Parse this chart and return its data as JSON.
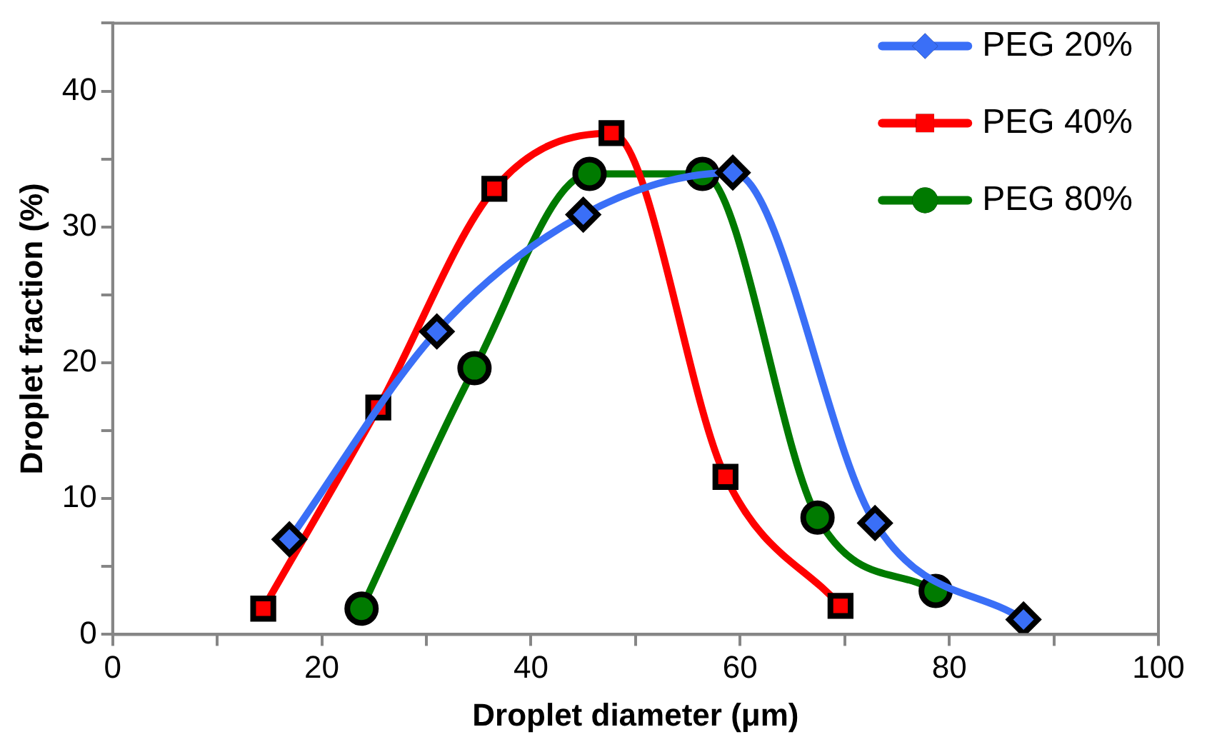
{
  "chart_data": {
    "type": "line",
    "xlabel": "Droplet diameter (μm)",
    "ylabel": "Droplet fraction (%)",
    "xlim": [
      0,
      100
    ],
    "xticks": [
      0,
      {
        "value": 10,
        "label": null
      },
      20,
      {
        "value": 30,
        "label": null
      },
      40,
      {
        "value": 50,
        "label": null
      },
      60,
      {
        "value": 70,
        "label": null
      },
      80,
      {
        "value": 90,
        "label": null
      },
      100
    ],
    "ylim": [
      0,
      45
    ],
    "yticks": [
      0,
      {
        "value": 5,
        "label": null
      },
      10,
      {
        "value": 15,
        "label": null
      },
      20,
      {
        "value": 25,
        "label": null
      },
      30,
      {
        "value": 35,
        "label": null
      },
      40,
      {
        "value": 45,
        "label": null
      }
    ],
    "grid": false,
    "legend": "top right",
    "series": [
      {
        "name": "PEG 20%",
        "color": "#3a6ff7",
        "marker": "diamond",
        "x": [
          16.9,
          31.0,
          45.0,
          59.3,
          72.9,
          87.1
        ],
        "values": [
          7.0,
          22.3,
          30.9,
          34.0,
          8.2,
          1.1
        ]
      },
      {
        "name": "PEG 40%",
        "color": "#ff0000",
        "marker": "square",
        "x": [
          14.4,
          25.4,
          36.5,
          47.7,
          58.6,
          69.6
        ],
        "values": [
          1.9,
          16.7,
          32.8,
          36.9,
          11.6,
          2.1
        ]
      },
      {
        "name": "PEG 80%",
        "color": "#007a00",
        "marker": "circle",
        "x": [
          23.8,
          34.6,
          45.6,
          56.4,
          67.4,
          78.7
        ],
        "values": [
          1.9,
          19.6,
          33.9,
          33.9,
          8.6,
          3.2
        ]
      }
    ]
  }
}
